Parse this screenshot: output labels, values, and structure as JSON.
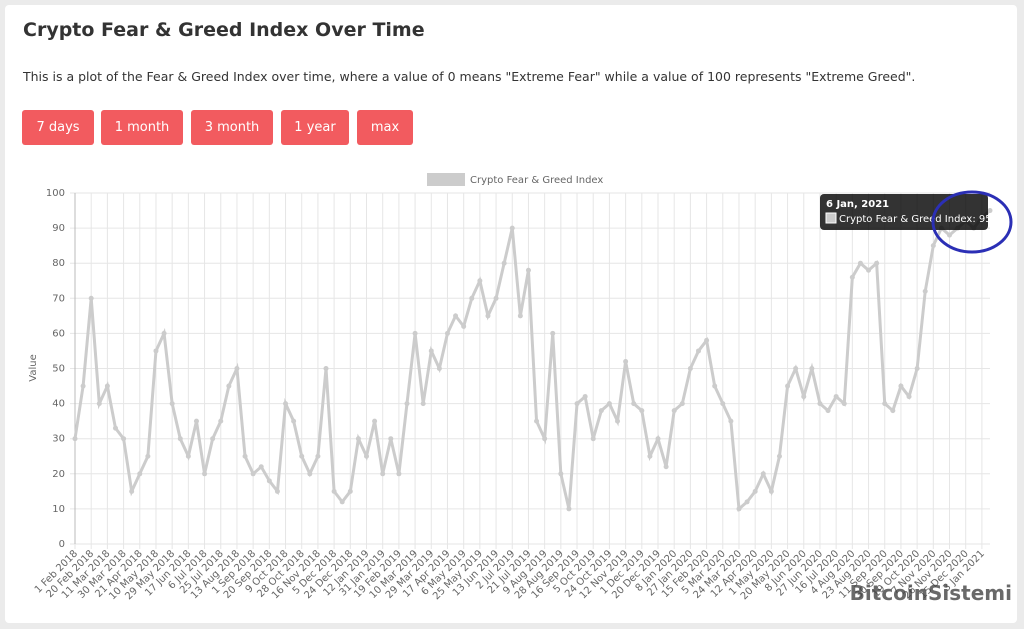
{
  "header": {
    "title": "Crypto Fear & Greed Index Over Time",
    "description": "This is a plot of the Fear & Greed Index over time, where a value of 0 means \"Extreme Fear\" while a value of 100 represents \"Extreme Greed\"."
  },
  "buttons": [
    "7 days",
    "1 month",
    "3 month",
    "1 year",
    "max"
  ],
  "chart_data": {
    "type": "line",
    "y_label": "Value",
    "categories": [
      "1 Feb 2018",
      null,
      "20 Feb 2018",
      null,
      "11 Mar 2018",
      null,
      "30 Mar 2018",
      null,
      "21 Apr 2018",
      null,
      "10 May 2018",
      null,
      "29 May 2018",
      null,
      "17 Jun 2018",
      null,
      "6 Jul 2018",
      null,
      "25 Jul 2018",
      null,
      "13 Aug 2018",
      null,
      "1 Sep 2018",
      null,
      "20 Sep 2018",
      null,
      "9 Oct 2018",
      null,
      "28 Oct 2018",
      null,
      "16 Nov 2018",
      null,
      "5 Dec 2018",
      null,
      "24 Dec 2018",
      null,
      "12 Jan 2019",
      null,
      "31 Jan 2019",
      null,
      "19 Feb 2019",
      null,
      "10 Mar 2019",
      null,
      "29 Mar 2019",
      null,
      "17 Apr 2019",
      null,
      "6 May 2019",
      null,
      "25 May 2019",
      null,
      "13 Jun 2019",
      null,
      "2 Jul 2019",
      null,
      "21 Jul 2019",
      null,
      "9 Aug 2019",
      null,
      "28 Aug 2019",
      null,
      "16 Sep 2019",
      null,
      "5 Oct 2019",
      null,
      "24 Oct 2019",
      null,
      "12 Nov 2019",
      null,
      "1 Dec 2019",
      null,
      "20 Dec 2019",
      null,
      "8 Jan 2020",
      null,
      "27 Jan 2020",
      null,
      "15 Feb 2020",
      null,
      "5 Mar 2020",
      null,
      "24 Mar 2020",
      null,
      "12 Apr 2020",
      null,
      "1 May 2020",
      null,
      "20 May 2020",
      null,
      "8 Jun 2020",
      null,
      "27 Jun 2020",
      null,
      "16 Jul 2020",
      null,
      "4 Aug 2020",
      null,
      "23 Aug 2020",
      null,
      "11 Sep 2020",
      null,
      "30 Sep 2020",
      null,
      "19 Oct 2020",
      null,
      "7 Nov 2020",
      null,
      "26 Nov 2020",
      null,
      "15 Dec 2020",
      null,
      "3 Jan 2021",
      null
    ],
    "series": [
      {
        "name": "Crypto Fear & Greed Index",
        "color": "#cccccc",
        "values": [
          30,
          45,
          70,
          40,
          45,
          33,
          30,
          15,
          20,
          25,
          55,
          60,
          40,
          30,
          25,
          35,
          20,
          30,
          35,
          45,
          50,
          25,
          20,
          22,
          18,
          15,
          40,
          35,
          25,
          20,
          25,
          50,
          15,
          12,
          15,
          30,
          25,
          35,
          20,
          30,
          20,
          40,
          60,
          40,
          55,
          50,
          60,
          65,
          62,
          70,
          75,
          65,
          70,
          80,
          90,
          65,
          78,
          35,
          30,
          60,
          20,
          10,
          40,
          42,
          30,
          38,
          40,
          35,
          52,
          40,
          38,
          25,
          30,
          22,
          38,
          40,
          50,
          55,
          58,
          45,
          40,
          35,
          10,
          12,
          15,
          20,
          15,
          25,
          45,
          50,
          42,
          50,
          40,
          38,
          42,
          40,
          76,
          80,
          78,
          80,
          40,
          38,
          45,
          42,
          50,
          72,
          85,
          90,
          88,
          90,
          92,
          90,
          93,
          95
        ]
      }
    ],
    "ylim": [
      0,
      100
    ],
    "yticks": [
      0,
      10,
      20,
      30,
      40,
      50,
      60,
      70,
      80,
      90,
      100
    ],
    "grid": true,
    "legend": "top",
    "tooltip": {
      "title": "6 Jan, 2021",
      "label": "Crypto Fear & Greed Index: 95"
    }
  },
  "watermark": "BitcoinSistemi"
}
